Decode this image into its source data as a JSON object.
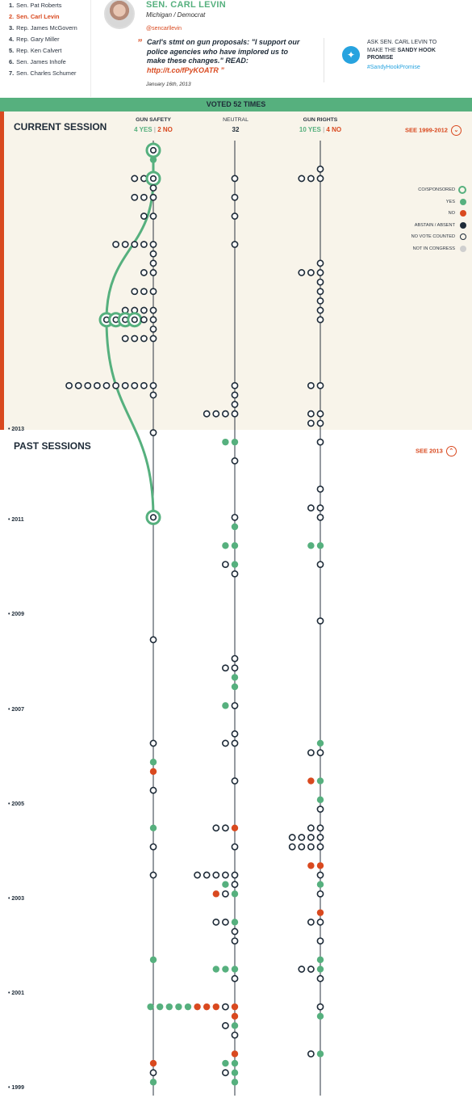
{
  "nav": {
    "items": [
      {
        "num": "1.",
        "name": "Sen. Pat Roberts",
        "active": false
      },
      {
        "num": "2.",
        "name": "Sen. Carl Levin",
        "active": true
      },
      {
        "num": "3.",
        "name": "Rep. James McGovern",
        "active": false
      },
      {
        "num": "4.",
        "name": "Rep. Gary Miller",
        "active": false
      },
      {
        "num": "5.",
        "name": "Rep. Ken Calvert",
        "active": false
      },
      {
        "num": "6.",
        "name": "Sen. James Inhofe",
        "active": false
      },
      {
        "num": "7.",
        "name": "Sen. Charles Schumer",
        "active": false
      }
    ]
  },
  "header": {
    "name": "SEN. CARL LEVIN",
    "party": "Michigan / Democrat",
    "handle": "@sencarllevin",
    "quote_text": "Carl's stmt on gun proposals: \"I support our police agencies who have implored us to make these changes.\" READ:",
    "quote_link": "http://t.co/fPyKOATR",
    "quote_date": "January 16th, 2013",
    "ask_pre": "ASK SEN. CARL LEVIN TO MAKE THE",
    "ask_bold": "SANDY HOOK PROMISE",
    "hashtag": "#SandyHookPromise"
  },
  "banner": "VOTED 52 TIMES",
  "current": {
    "title": "CURRENT SESSION",
    "toggle": "SEE 1999-2012"
  },
  "past": {
    "title": "PAST SESSIONS",
    "toggle": "SEE 2013"
  },
  "columns": {
    "safety": {
      "title": "GUN SAFETY",
      "yes": "4 YES",
      "sep": "|",
      "no": "2 NO"
    },
    "neutral": {
      "title": "NEUTRAL",
      "count": "32"
    },
    "rights": {
      "title": "GUN RIGHTS",
      "yes": "10 YES",
      "sep": "|",
      "no": "4 NO"
    }
  },
  "legend": [
    {
      "label": "CO/SPONSORED",
      "kind": "co"
    },
    {
      "label": "YES",
      "kind": "yes"
    },
    {
      "label": "NO",
      "kind": "no"
    },
    {
      "label": "ABSTAIN / ABSENT",
      "kind": "abstain"
    },
    {
      "label": "NO VOTE COUNTED",
      "kind": "novote"
    },
    {
      "label": "NOT IN CONGRESS",
      "kind": "notin"
    }
  ],
  "colors": {
    "yes": "#56b07e",
    "no": "#d9491f",
    "abstain": "#1e2b38",
    "notin": "#cfcfcf",
    "accent": "#d9491f",
    "twitter": "#27a3df"
  },
  "chart_data": {
    "type": "scatter",
    "columns": [
      "GUN SAFETY",
      "NEUTRAL",
      "GUN RIGHTS"
    ],
    "years": [
      "2013",
      "2011",
      "2009",
      "2007",
      "2005",
      "2003",
      "2001",
      "1999"
    ],
    "rows": [
      {
        "s": "C"
      },
      {
        "s": "Y"
      },
      {
        "r": "O"
      },
      {
        "s": "OOC",
        "n": "O",
        "r": "OOO"
      },
      {
        "s": "O"
      },
      {
        "s": "OOO",
        "n": "O"
      },
      {},
      {
        "s": "OO",
        "n": "O"
      },
      {},
      {},
      {
        "s": "OOOOO",
        "n": "O"
      },
      {
        "s": "O"
      },
      {
        "s": "O",
        "r": "O"
      },
      {
        "s": "OO",
        "r": "OOO"
      },
      {
        "r": "O"
      },
      {
        "s": "OOO",
        "r": "O"
      },
      {
        "r": "O"
      },
      {
        "s": "OOOO",
        "r": "O"
      },
      {
        "s": "CCCCOO",
        "r": "O"
      },
      {
        "s": "O"
      },
      {
        "s": "OOOO"
      },
      {},
      {},
      {},
      {},
      {
        "s": "OOOOOOOOOO",
        "n": "O",
        "r": "OO"
      },
      {
        "s": "O",
        "n": "O"
      },
      {
        "n": "O"
      },
      {
        "n": "OOOO",
        "r": "OO"
      },
      {
        "r": "OO"
      },
      {
        "s": "O"
      },
      {
        "n": "YY",
        "r": "O"
      },
      {},
      {
        "n": "O"
      },
      {},
      {},
      {
        "r": "O"
      },
      {},
      {
        "r": "OO"
      },
      {
        "s": "C",
        "n": "O",
        "r": "O"
      },
      {
        "n": "Y"
      },
      {},
      {
        "n": "YY",
        "r": "YY"
      },
      {},
      {
        "n": "OY",
        "r": "O"
      },
      {
        "n": "O"
      },
      {},
      {},
      {},
      {},
      {
        "r": "O"
      },
      {},
      {
        "s": "O"
      },
      {},
      {
        "n": "O"
      },
      {
        "n": "OO"
      },
      {
        "n": "Y"
      },
      {
        "n": "Y"
      },
      {},
      {
        "n": "YO"
      },
      {},
      {},
      {
        "n": "O"
      },
      {
        "s": "O",
        "n": "OO",
        "r": "Y"
      },
      {
        "r": "OO"
      },
      {
        "s": "Y"
      },
      {
        "s": "N"
      },
      {
        "n": "O",
        "r": "NY"
      },
      {
        "s": "O"
      },
      {
        "r": "Y"
      },
      {
        "r": "O"
      },
      {},
      {
        "s": "Y",
        "n": "OON",
        "r": "OO"
      },
      {
        "r": "OOOO"
      },
      {
        "s": "O",
        "n": "O",
        "r": "OOOO"
      },
      {},
      {
        "r": "NN"
      },
      {
        "s": "O",
        "n": "OOOOO",
        "r": "O"
      },
      {
        "n": "YO",
        "r": "Y"
      },
      {
        "n": "NOY",
        "r": "O"
      },
      {},
      {
        "r": "N"
      },
      {
        "n": "OOY",
        "r": "OO"
      },
      {
        "n": "O"
      },
      {
        "n": "O",
        "r": "O"
      },
      {},
      {
        "s": "Y",
        "r": "Y"
      },
      {
        "n": "YYY",
        "r": "OOY"
      },
      {
        "n": "O",
        "r": "O"
      },
      {},
      {},
      {
        "n": "YYYYYNNNON",
        "r": "O"
      },
      {
        "n": "N",
        "r": "Y"
      },
      {
        "n": "OY"
      },
      {
        "n": "O"
      },
      {},
      {
        "n": "N",
        "r": "OY"
      },
      {
        "s": "N",
        "n": "YY"
      },
      {
        "s": "O",
        "n": "OY"
      },
      {
        "s": "Y",
        "n": "Y"
      }
    ]
  }
}
